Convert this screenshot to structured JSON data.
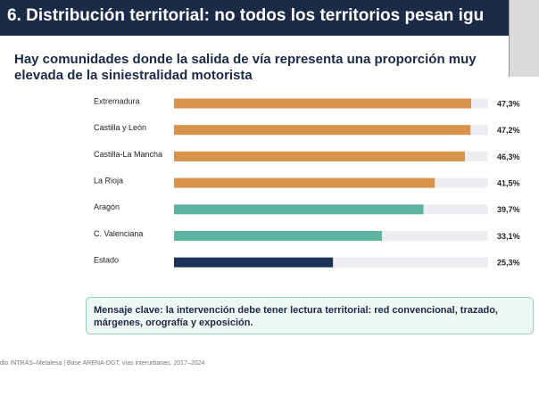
{
  "chart_data": {
    "type": "bar",
    "orientation": "horizontal",
    "title": "6. Distribución territorial: no todos los territorios pesan igu",
    "subtitle": "Hay comunidades donde la salida de vía representa una proporción muy elevada de la siniestralidad motorista",
    "categories": [
      "Extremadura",
      "Castilla y León",
      "Castilla-La Mancha",
      "La Rioja",
      "Aragón",
      "C. Valenciana",
      "Estado"
    ],
    "values": [
      47.3,
      47.2,
      46.3,
      41.5,
      39.7,
      33.1,
      25.3
    ],
    "value_labels": [
      "47,3%",
      "47,2%",
      "46,3%",
      "41,5%",
      "39,7%",
      "33,1%",
      "25,3%"
    ],
    "colors": [
      "#d8934a",
      "#d8934a",
      "#d8934a",
      "#d8934a",
      "#5cb4a1",
      "#5cb4a1",
      "#1b3358"
    ],
    "xlim": [
      0,
      50
    ],
    "annotation": "Mensaje clave: la intervención debe tener lectura territorial: red convencional, trazado, márgenes, orografía y exposición.",
    "source": "dio INTRAS–Metalesa | Base ARENA-DGT, vías interurbanas, 2017–2024"
  }
}
